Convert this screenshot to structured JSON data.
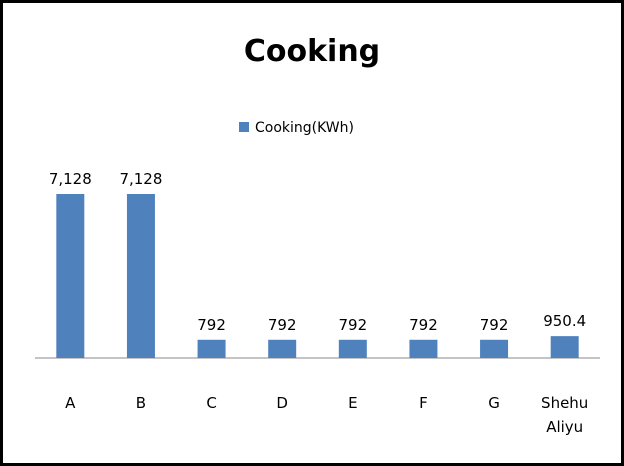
{
  "chart_data": {
    "type": "bar",
    "title": "Cooking",
    "categories": [
      "A",
      "B",
      "C",
      "D",
      "E",
      "F",
      "G",
      "Shehu Aliyu"
    ],
    "series": [
      {
        "name": "Cooking(KWh)",
        "color": "#4f81bd",
        "values": [
          7128,
          7128,
          792,
          792,
          792,
          792,
          792,
          950.4
        ],
        "value_labels": [
          "7,128",
          "7,128",
          "792",
          "792",
          "792",
          "792",
          "792",
          "950.4"
        ]
      }
    ],
    "legend": "top"
  }
}
